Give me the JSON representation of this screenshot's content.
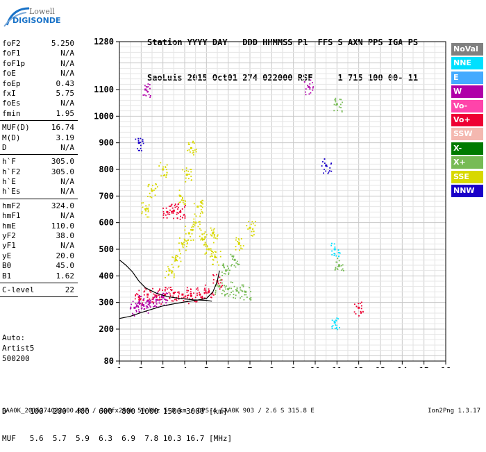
{
  "logo": {
    "line1": "Lowell",
    "line2": "DIGISONDE"
  },
  "header": {
    "line1": "Station YYYY DAY   DDD HHMMSS P1  FFS S AXN PPS IGA PS",
    "line2": "SaoLuis 2015 Oct01 274 022000 RSF     1 715 100 00- 11"
  },
  "params": {
    "group1": [
      {
        "label": "foF2",
        "value": "5.250"
      },
      {
        "label": "foF1",
        "value": "N/A"
      },
      {
        "label": "foF1p",
        "value": "N/A"
      },
      {
        "label": "foE",
        "value": "N/A"
      },
      {
        "label": "foEp",
        "value": "0.43"
      },
      {
        "label": "fxI",
        "value": "5.75"
      },
      {
        "label": "foEs",
        "value": "N/A"
      },
      {
        "label": "fmin",
        "value": "1.95"
      }
    ],
    "group2": [
      {
        "label": "MUF(D)",
        "value": "16.74"
      },
      {
        "label": "M(D)",
        "value": "3.19"
      },
      {
        "label": "D",
        "value": "N/A"
      }
    ],
    "group3": [
      {
        "label": "h`F",
        "value": "305.0"
      },
      {
        "label": "h`F2",
        "value": "305.0"
      },
      {
        "label": "h`E",
        "value": "N/A"
      },
      {
        "label": "h`Es",
        "value": "N/A"
      }
    ],
    "group4": [
      {
        "label": "hmF2",
        "value": "324.0"
      },
      {
        "label": "hmF1",
        "value": "N/A"
      },
      {
        "label": "hmE",
        "value": "110.0"
      },
      {
        "label": "yF2",
        "value": "38.0"
      },
      {
        "label": "yF1",
        "value": "N/A"
      },
      {
        "label": "yE",
        "value": "20.0"
      },
      {
        "label": "B0",
        "value": "45.0"
      },
      {
        "label": "B1",
        "value": "1.62"
      }
    ],
    "group5": [
      {
        "label": "C-level",
        "value": "22"
      }
    ]
  },
  "auto": {
    "line1": "Auto:",
    "line2": "Artist5",
    "line3": "500200"
  },
  "muf_table": {
    "d_row": "D     100  200  400  600  800 1000 1500 3000 [km]",
    "muf_row": "MUF   5.6  5.7  5.9  6.3  6.9  7.8 10.3 16.7 [MHz]"
  },
  "footer": "SAA0K_2015274022000.RSF / 300fx256h 50 kHz 5.0 km / DPS-4 SAA0K 903 / 2.6 S 315.8 E",
  "version": "Ion2Png 1.3.17",
  "legend": [
    {
      "label": "NoVal",
      "color": "#808080"
    },
    {
      "label": "NNE",
      "color": "#00e0ff"
    },
    {
      "label": "E",
      "color": "#44aaff"
    },
    {
      "label": "W",
      "color": "#b000a8"
    },
    {
      "label": "Vo-",
      "color": "#ff44aa"
    },
    {
      "label": "Vo+",
      "color": "#ee0033"
    },
    {
      "label": "SSW",
      "color": "#f4b8b0"
    },
    {
      "label": "X-",
      "color": "#007a00"
    },
    {
      "label": "X+",
      "color": "#77bb55"
    },
    {
      "label": "SSE",
      "color": "#d8d800"
    },
    {
      "label": "NNW",
      "color": "#1a00c8"
    }
  ],
  "chart_data": {
    "type": "scatter",
    "xlim": [
      1,
      16
    ],
    "ylim": [
      80,
      1280
    ],
    "x_ticks": [
      1,
      2,
      3,
      4,
      5,
      6,
      7,
      8,
      9,
      10,
      11,
      12,
      13,
      14,
      15,
      16
    ],
    "y_ticks": [
      80,
      200,
      300,
      400,
      500,
      600,
      700,
      800,
      900,
      1000,
      1100,
      1280
    ],
    "grid": true,
    "series": [
      {
        "name": "SSE",
        "color": "#d8d800",
        "points": [
          [
            3.3,
            420
          ],
          [
            3.6,
            460
          ],
          [
            3.9,
            520
          ],
          [
            4.2,
            560
          ],
          [
            4.5,
            600
          ],
          [
            4.8,
            540
          ],
          [
            5.1,
            500
          ],
          [
            5.4,
            470
          ],
          [
            3.8,
            700
          ],
          [
            4.1,
            780
          ],
          [
            4.3,
            880
          ],
          [
            4.6,
            660
          ],
          [
            2.2,
            650
          ],
          [
            2.5,
            720
          ],
          [
            3.0,
            800
          ],
          [
            5.3,
            560
          ],
          [
            6.5,
            520
          ],
          [
            7.0,
            580
          ]
        ]
      },
      {
        "name": "Vo+",
        "color": "#ee0033",
        "points": [
          [
            1.9,
            320
          ],
          [
            2.3,
            330
          ],
          [
            2.7,
            325
          ],
          [
            3.1,
            330
          ],
          [
            3.5,
            335
          ],
          [
            3.9,
            330
          ],
          [
            4.3,
            325
          ],
          [
            4.7,
            330
          ],
          [
            5.1,
            340
          ],
          [
            5.5,
            380
          ],
          [
            3.2,
            640
          ],
          [
            3.5,
            645
          ],
          [
            3.8,
            640
          ],
          [
            12.0,
            280
          ]
        ]
      },
      {
        "name": "W",
        "color": "#b000a8",
        "points": [
          [
            1.7,
            280
          ],
          [
            1.9,
            300
          ],
          [
            2.1,
            290
          ],
          [
            2.4,
            300
          ],
          [
            2.7,
            310
          ],
          [
            3.0,
            320
          ],
          [
            9.7,
            1110
          ],
          [
            2.2,
            1100
          ]
        ]
      },
      {
        "name": "X+",
        "color": "#77bb55",
        "points": [
          [
            5.6,
            360
          ],
          [
            6.0,
            350
          ],
          [
            6.4,
            345
          ],
          [
            6.8,
            340
          ],
          [
            5.9,
            420
          ],
          [
            6.3,
            460
          ],
          [
            11.0,
            1045
          ],
          [
            11.1,
            440
          ]
        ]
      },
      {
        "name": "NNW",
        "color": "#1a00c8",
        "points": [
          [
            10.5,
            815
          ],
          [
            1.9,
            900
          ]
        ]
      },
      {
        "name": "NNE",
        "color": "#00e0ff",
        "points": [
          [
            10.9,
            225
          ],
          [
            10.9,
            500
          ]
        ]
      }
    ],
    "trace": [
      [
        1,
        240
      ],
      [
        1.5,
        248
      ],
      [
        2.0,
        262
      ],
      [
        2.5,
        275
      ],
      [
        3.0,
        287
      ],
      [
        3.5,
        295
      ],
      [
        4.0,
        302
      ],
      [
        4.5,
        308
      ],
      [
        5.0,
        315
      ],
      [
        5.3,
        340
      ],
      [
        5.5,
        380
      ],
      [
        5.6,
        420
      ]
    ],
    "profile": [
      [
        1,
        460
      ],
      [
        1.3,
        440
      ],
      [
        1.6,
        415
      ],
      [
        1.9,
        380
      ],
      [
        2.2,
        355
      ],
      [
        2.7,
        335
      ],
      [
        3.2,
        322
      ],
      [
        3.8,
        315
      ],
      [
        4.4,
        310
      ],
      [
        5.0,
        308
      ],
      [
        5.25,
        305
      ]
    ]
  }
}
